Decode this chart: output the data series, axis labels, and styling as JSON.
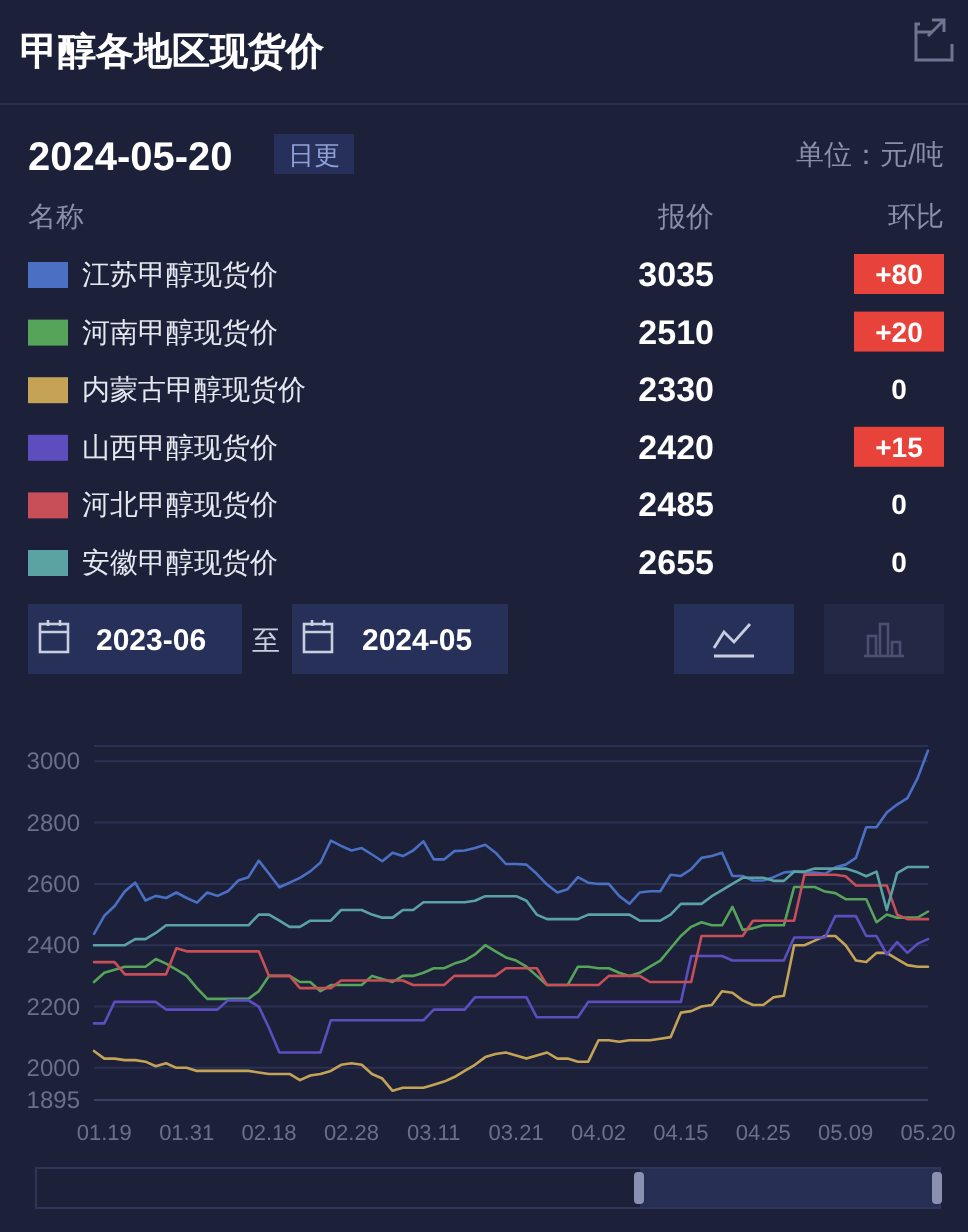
{
  "chart_data": [
    {
      "type": "other",
      "title": "甲醇各地区现货价",
      "annotations": [
        "2024-05-20",
        "日更",
        "单位：元/吨",
        "名称",
        "报价",
        "环比",
        "3035",
        "+80",
        "2510",
        "+20",
        "2330",
        "0",
        "2420",
        "+15",
        "2485",
        "0",
        "2655",
        "0",
        "2023-06",
        "至",
        "2024-05"
      ]
    },
    {
      "type": "line",
      "categories": [
        null,
        "01.19",
        null,
        null,
        null,
        null,
        null,
        null,
        null,
        "01.31",
        null,
        null,
        null,
        null,
        null,
        null,
        null,
        "02.18",
        null,
        null,
        null,
        null,
        null,
        null,
        null,
        "02.28",
        null,
        null,
        null,
        null,
        null,
        null,
        null,
        "03.11",
        null,
        null,
        null,
        null,
        null,
        null,
        null,
        "03.21",
        null,
        null,
        null,
        null,
        null,
        null,
        null,
        "04.02",
        null,
        null,
        null,
        null,
        null,
        null,
        null,
        "04.15",
        null,
        null,
        null,
        null,
        null,
        null,
        null,
        "04.25",
        null,
        null,
        null,
        null,
        null,
        null,
        null,
        "05.09",
        null,
        null,
        null,
        null,
        null,
        null,
        null,
        "05.20"
      ],
      "series": [
        {
          "name": "江苏甲醇现货价",
          "color": "#4a6fc3",
          "values": [
            2437,
            2496,
            2528,
            2576,
            2604,
            2546,
            2561,
            2554,
            2572,
            2554,
            2539,
            2572,
            2561,
            2576,
            2611,
            2622,
            2676,
            2633,
            2589,
            2604,
            2620,
            2641,
            2670,
            2741,
            2724,
            2709,
            2717,
            2696,
            2674,
            2702,
            2691,
            2709,
            2739,
            2680,
            2680,
            2707,
            2709,
            2717,
            2728,
            2702,
            2665,
            2665,
            2663,
            2633,
            2598,
            2572,
            2583,
            2622,
            2604,
            2600,
            2600,
            2561,
            2535,
            2572,
            2576,
            2576,
            2630,
            2626,
            2648,
            2685,
            2691,
            2702,
            2626,
            2626,
            2611,
            2611,
            2622,
            2637,
            2641,
            2637,
            2637,
            2633,
            2654,
            2663,
            2685,
            2785,
            2785,
            2833,
            2859,
            2880,
            2946,
            3035
          ]
        },
        {
          "name": "河南甲醇现货价",
          "color": "#56a35a",
          "values": [
            2280,
            2310,
            2320,
            2330,
            2330,
            2330,
            2355,
            2340,
            2320,
            2300,
            2260,
            2225,
            2225,
            2225,
            2225,
            2225,
            2250,
            2300,
            2300,
            2300,
            2280,
            2280,
            2250,
            2270,
            2270,
            2270,
            2270,
            2300,
            2290,
            2280,
            2300,
            2300,
            2310,
            2325,
            2325,
            2340,
            2350,
            2370,
            2400,
            2380,
            2360,
            2350,
            2330,
            2300,
            2270,
            2270,
            2270,
            2330,
            2330,
            2325,
            2325,
            2310,
            2300,
            2310,
            2330,
            2350,
            2390,
            2430,
            2460,
            2475,
            2465,
            2465,
            2525,
            2450,
            2455,
            2465,
            2465,
            2465,
            2590,
            2590,
            2590,
            2575,
            2570,
            2550,
            2550,
            2550,
            2475,
            2500,
            2490,
            2490,
            2490,
            2510
          ]
        },
        {
          "name": "内蒙古甲醇现货价",
          "color": "#c4a357",
          "values": [
            2055,
            2030,
            2030,
            2025,
            2025,
            2020,
            2005,
            2015,
            2000,
            2000,
            1990,
            1990,
            1990,
            1990,
            1990,
            1990,
            1985,
            1980,
            1980,
            1980,
            1960,
            1975,
            1980,
            1990,
            2010,
            2015,
            2010,
            1980,
            1965,
            1925,
            1935,
            1935,
            1935,
            1945,
            1955,
            1970,
            1990,
            2010,
            2035,
            2045,
            2050,
            2040,
            2030,
            2040,
            2050,
            2030,
            2030,
            2020,
            2020,
            2090,
            2090,
            2085,
            2090,
            2090,
            2090,
            2095,
            2100,
            2180,
            2185,
            2200,
            2205,
            2250,
            2245,
            2220,
            2205,
            2205,
            2230,
            2235,
            2400,
            2400,
            2415,
            2430,
            2430,
            2400,
            2350,
            2345,
            2375,
            2375,
            2355,
            2335,
            2330,
            2330
          ]
        },
        {
          "name": "山西甲醇现货价",
          "color": "#5d4ec0",
          "values": [
            2145,
            2145,
            2215,
            2215,
            2215,
            2215,
            2215,
            2190,
            2190,
            2190,
            2190,
            2190,
            2190,
            2220,
            2220,
            2220,
            2200,
            2130,
            2050,
            2050,
            2050,
            2050,
            2050,
            2155,
            2155,
            2155,
            2155,
            2155,
            2155,
            2155,
            2155,
            2155,
            2155,
            2190,
            2190,
            2190,
            2190,
            2230,
            2230,
            2230,
            2230,
            2230,
            2230,
            2165,
            2165,
            2165,
            2165,
            2165,
            2215,
            2215,
            2215,
            2215,
            2215,
            2215,
            2215,
            2215,
            2215,
            2215,
            2365,
            2365,
            2365,
            2365,
            2350,
            2350,
            2350,
            2350,
            2350,
            2350,
            2425,
            2425,
            2425,
            2425,
            2495,
            2495,
            2495,
            2430,
            2430,
            2370,
            2410,
            2375,
            2405,
            2420
          ]
        },
        {
          "name": "河北甲醇现货价",
          "color": "#c84f57",
          "values": [
            2345,
            2345,
            2345,
            2305,
            2305,
            2305,
            2305,
            2305,
            2390,
            2380,
            2380,
            2380,
            2380,
            2380,
            2380,
            2380,
            2380,
            2300,
            2300,
            2300,
            2260,
            2260,
            2260,
            2260,
            2285,
            2285,
            2285,
            2285,
            2285,
            2285,
            2285,
            2270,
            2270,
            2270,
            2270,
            2300,
            2300,
            2300,
            2300,
            2300,
            2325,
            2325,
            2325,
            2325,
            2270,
            2270,
            2270,
            2270,
            2270,
            2270,
            2300,
            2300,
            2300,
            2300,
            2280,
            2280,
            2280,
            2280,
            2280,
            2430,
            2430,
            2430,
            2430,
            2430,
            2480,
            2480,
            2480,
            2480,
            2480,
            2630,
            2630,
            2630,
            2630,
            2625,
            2595,
            2595,
            2595,
            2595,
            2500,
            2485,
            2485,
            2485
          ]
        },
        {
          "name": "安徽甲醇现货价",
          "color": "#5ba3a3",
          "values": [
            2400,
            2400,
            2400,
            2400,
            2420,
            2420,
            2440,
            2465,
            2465,
            2465,
            2465,
            2465,
            2465,
            2465,
            2465,
            2465,
            2500,
            2500,
            2480,
            2460,
            2460,
            2480,
            2480,
            2480,
            2515,
            2515,
            2515,
            2500,
            2490,
            2490,
            2515,
            2515,
            2540,
            2540,
            2540,
            2540,
            2540,
            2545,
            2560,
            2560,
            2560,
            2560,
            2545,
            2500,
            2485,
            2485,
            2485,
            2485,
            2500,
            2500,
            2500,
            2500,
            2500,
            2480,
            2480,
            2480,
            2500,
            2535,
            2535,
            2535,
            2560,
            2580,
            2600,
            2620,
            2620,
            2620,
            2610,
            2610,
            2640,
            2640,
            2650,
            2650,
            2650,
            2650,
            2640,
            2625,
            2640,
            2515,
            2635,
            2655,
            2655,
            2655
          ]
        }
      ],
      "ylim": [
        1895,
        3050
      ],
      "yticks": [
        1895,
        2000,
        2200,
        2400,
        2600,
        2800,
        3000
      ],
      "grid": "y",
      "legend": "top"
    }
  ]
}
